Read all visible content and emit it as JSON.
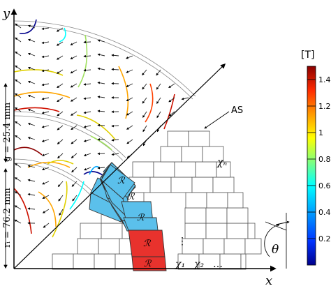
{
  "axes": {
    "x_label": "x",
    "y_label": "y",
    "angle_label": "θ"
  },
  "dimensions": {
    "gap": "g = 25.4 mm",
    "radius": "rᵢ = 76.2 mm"
  },
  "annotation": {
    "as_label": "AS"
  },
  "blocks": {
    "magnet_label": "ℛ",
    "chi_1": "χ₁",
    "chi_2": "χ₂",
    "chi_ellipsis": "…",
    "chi_n": "χₙ",
    "vdots": "⋮"
  },
  "colorbar": {
    "unit": "[T]",
    "ticks": [
      "1.4",
      "1.2",
      "1",
      "0.8",
      "0.6",
      "0.4",
      "0.2"
    ],
    "range": [
      0,
      1.5
    ],
    "colors": [
      "#00008b",
      "#0033ff",
      "#00a8ff",
      "#00ffff",
      "#7fff7f",
      "#ffff00",
      "#ff9900",
      "#ff2a00",
      "#8b0000"
    ]
  },
  "colors": {
    "magnet_blue": "#5bc0eb",
    "magnet_red": "#e8322d",
    "frame": "#000000"
  }
}
